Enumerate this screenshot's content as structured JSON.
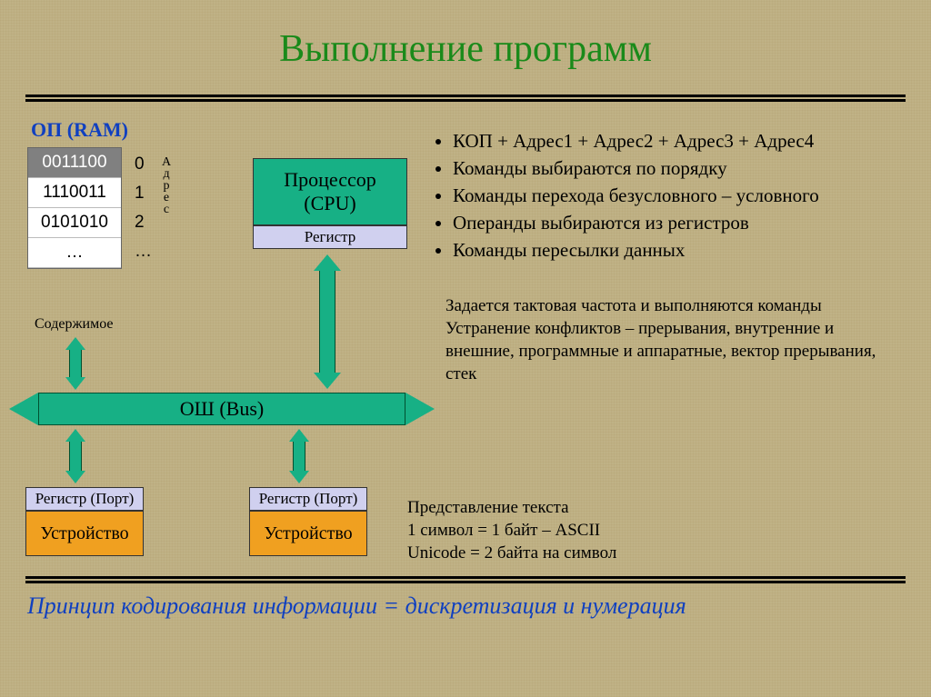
{
  "colors": {
    "green_title": "#1a8a1a",
    "blue": "#1040c0",
    "teal": "#17b085",
    "teal_dark": "#005030",
    "lavender": "#d0d0ef",
    "orange": "#f0a020",
    "ram_hl": "#808080"
  },
  "title": "Выполнение программ",
  "ram": {
    "label": "ОП (RAM)",
    "cells": [
      "0011100",
      "1110011",
      "0101010",
      "…"
    ],
    "highlight_index": 0,
    "addresses": [
      "0",
      "1",
      "2",
      "…"
    ],
    "addr_label": "Адрес",
    "content_label": "Содержимое"
  },
  "cpu": {
    "line1": "Процессор",
    "line2": "(CPU)",
    "register": "Регистр"
  },
  "bus": {
    "label": "ОШ (Bus)"
  },
  "devices": {
    "register_port": "Регистр (Порт)",
    "device": "Устройство"
  },
  "bullets": [
    "КОП + Адрес1 + Адрес2 + Адрес3 + Адрес4",
    "Команды выбираются по порядку",
    "Команды перехода безусловного – условного",
    "Операнды выбираются из регистров",
    "Команды пересылки данных"
  ],
  "middle_para": "Задается тактовая частота и выполняются команды Устранение конфликтов – прерывания, внутренние и внешние, программные и аппаратные, вектор прерывания, стек",
  "bottom_para": "Представление текста\n1 символ = 1 байт – ASCII\nUnicode = 2 байта на символ",
  "footer": "Принцип кодирования информации = дискретизация и нумерация"
}
